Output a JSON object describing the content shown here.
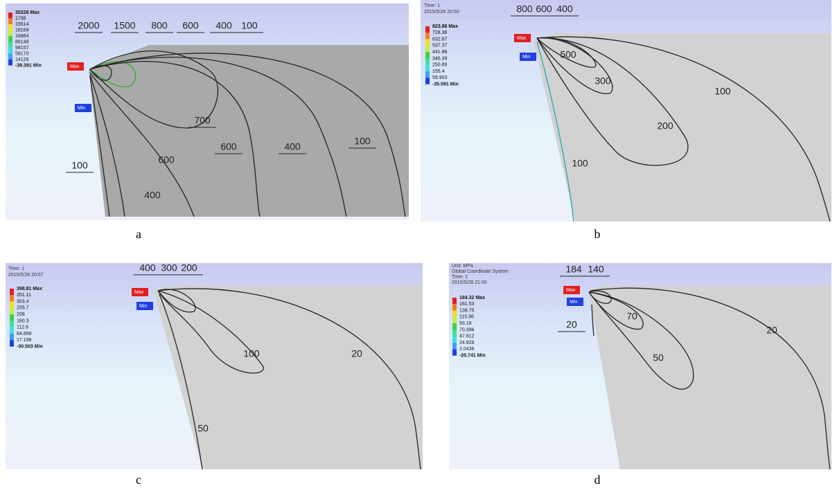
{
  "panels": [
    {
      "label": "a",
      "header": [],
      "legend": [
        "30228 Max",
        "1798",
        "15514",
        "18169",
        "16864",
        "86148",
        "98157",
        "58170",
        "14126",
        "-39.391 Min"
      ],
      "max_marker": "Max",
      "min_marker": "Min",
      "contours": [
        "2000",
        "1500",
        "800",
        "600",
        "400",
        "100",
        "700",
        "600",
        "400",
        "100",
        "600",
        "400",
        "100"
      ]
    },
    {
      "label": "b",
      "header": [
        "Time: 1",
        "2015/5/28 20:50"
      ],
      "legend": [
        "823.86 Max",
        "728.36",
        "632.87",
        "537.37",
        "441.88",
        "346.39",
        "250.89",
        "155.4",
        "59.903",
        "-35.591 Min"
      ],
      "max_marker": "Max",
      "min_marker": "Min",
      "contours": [
        "800",
        "600",
        "400",
        "500",
        "300",
        "200",
        "100",
        "100"
      ]
    },
    {
      "label": "c",
      "header": [
        "Time: 1",
        "2015/5/28 20:57"
      ],
      "legend": [
        "398.81 Max",
        "351.11",
        "303.4",
        "255.7",
        "208",
        "160.3",
        "112.6",
        "64.899",
        "17.198",
        "-30.503 Min"
      ],
      "max_marker": "Max",
      "min_marker": "Min",
      "contours": [
        "400",
        "300",
        "200",
        "100",
        "20",
        "50"
      ]
    },
    {
      "label": "d",
      "header": [
        "Unit: MPa",
        "Global Coordinate System",
        "Time: 1",
        "2015/5/28 21:00"
      ],
      "legend": [
        "184.32 Max",
        "161.53",
        "138.75",
        "115.96",
        "93.18",
        "70.396",
        "47.612",
        "24.828",
        "2.0436",
        "-20.741 Min"
      ],
      "max_marker": "Max",
      "min_marker": "Min",
      "contours": [
        "184",
        "140",
        "70",
        "50",
        "20",
        "20"
      ]
    }
  ]
}
